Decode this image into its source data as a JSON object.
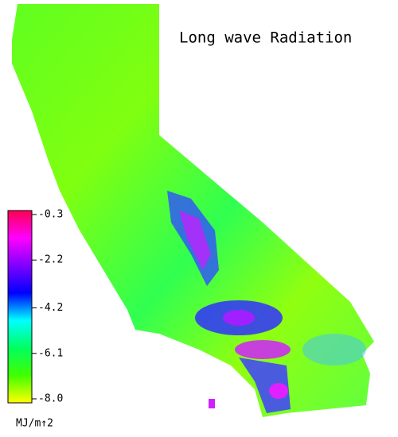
{
  "map": {
    "title": "Long wave Radiation",
    "colorbar": {
      "lim": [
        -8,
        -0.3
      ],
      "ticks": [
        -0.3,
        -2.2,
        -4.2,
        -6.1,
        {
          "value": -8,
          "label": "-8.0"
        }
      ],
      "colors": [
        "#ff0050",
        "#ff00ff",
        "#8000ff",
        "#0000ff",
        "#00ffff",
        "#00ff60",
        "#40ff00",
        "#ffff00"
      ],
      "unit_label": "MJ/m↑2"
    }
  }
}
